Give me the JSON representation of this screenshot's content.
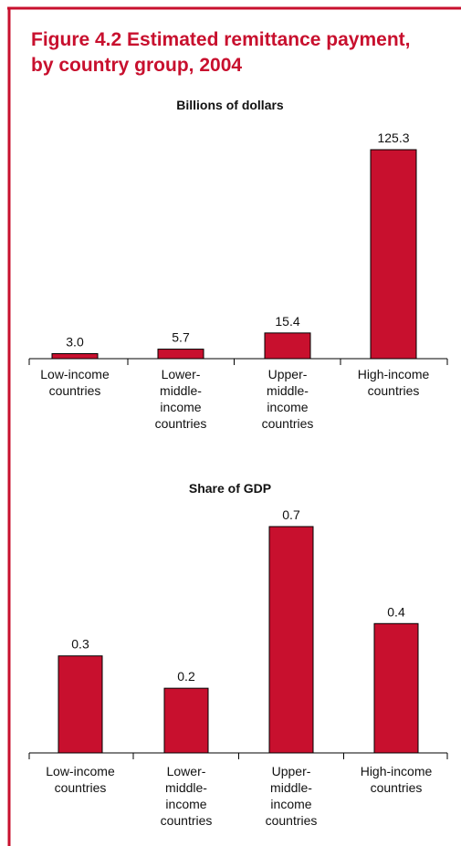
{
  "figure": {
    "title_line1": "Figure 4.2  Estimated remittance payment,",
    "title_line2": "by country group, 2004"
  },
  "colors": {
    "accent": "#c8102e",
    "bar": "#c8102e",
    "axis": "#000000"
  },
  "chart_data": [
    {
      "type": "bar",
      "title": "Billions of dollars",
      "categories": [
        [
          "Low-income",
          "countries"
        ],
        [
          "Lower-",
          "middle-",
          "income",
          "countries"
        ],
        [
          "Upper-",
          "middle-",
          "income",
          "countries"
        ],
        [
          "High-income",
          "countries"
        ]
      ],
      "values": [
        3.0,
        5.7,
        15.4,
        125.3
      ],
      "value_labels": [
        "3.0",
        "5.7",
        "15.4",
        "125.3"
      ],
      "ylim": [
        0,
        125.3
      ],
      "grid": false
    },
    {
      "type": "bar",
      "title": "Share of GDP",
      "categories": [
        [
          "Low-income",
          "countries"
        ],
        [
          "Lower-",
          "middle-",
          "income",
          "countries"
        ],
        [
          "Upper-",
          "middle-",
          "income",
          "countries"
        ],
        [
          "High-income",
          "countries"
        ]
      ],
      "values": [
        0.3,
        0.2,
        0.7,
        0.4
      ],
      "value_labels": [
        "0.3",
        "0.2",
        "0.7",
        "0.4"
      ],
      "ylim": [
        0,
        0.7
      ],
      "grid": false
    }
  ]
}
